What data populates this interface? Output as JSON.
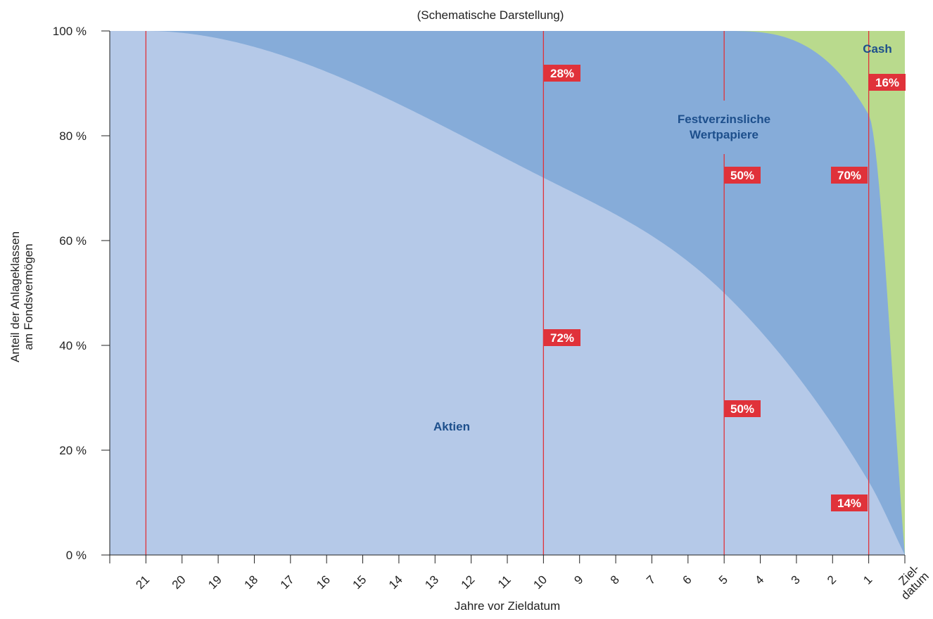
{
  "chart_data": {
    "type": "area",
    "subtitle": "(Schematische Darstellung)",
    "xlabel": "Jahre vor Zieldatum",
    "ylabel_lines": [
      "Anteil der Anlageklassen",
      "am Fondsvermögen"
    ],
    "x_ticks": [
      "21",
      "20",
      "19",
      "18",
      "17",
      "16",
      "15",
      "14",
      "13",
      "12",
      "11",
      "10",
      "9",
      "8",
      "7",
      "6",
      "5",
      "4",
      "3",
      "2",
      "1",
      "Ziel-|datum"
    ],
    "x_range_years_before": [
      22,
      0
    ],
    "y_ticks": [
      "0 %",
      "20 %",
      "40 %",
      "60 %",
      "80 %",
      "100 %"
    ],
    "ylim": [
      0,
      100
    ],
    "series": [
      {
        "name": "Aktien",
        "x_years_before": [
          22,
          21,
          10,
          5,
          1,
          0
        ],
        "values": [
          100,
          100,
          72,
          50,
          14,
          0
        ]
      },
      {
        "name": "Festverzinsliche Wertpapiere",
        "x_years_before": [
          22,
          21,
          10,
          5,
          1,
          0
        ],
        "values": [
          0,
          0,
          28,
          50,
          70,
          0
        ]
      },
      {
        "name": "Cash",
        "x_years_before": [
          22,
          21,
          10,
          5,
          1,
          0
        ],
        "values": [
          0,
          0,
          0,
          0,
          16,
          100
        ]
      }
    ],
    "reference_lines_years_before": [
      21,
      10,
      5,
      1
    ],
    "annotations": [
      {
        "year": 10,
        "value": 28,
        "text": "28%"
      },
      {
        "year": 10,
        "value": 72,
        "text": "72%"
      },
      {
        "year": 5,
        "value": 50,
        "text": "50%"
      },
      {
        "year": 5,
        "value": 50,
        "text": "50%"
      },
      {
        "year": 1,
        "value": 16,
        "text": "16%"
      },
      {
        "year": 1,
        "value": 70,
        "text": "70%"
      },
      {
        "year": 1,
        "value": 14,
        "text": "14%"
      }
    ],
    "area_labels": [
      {
        "lines": [
          "Aktien"
        ]
      },
      {
        "lines": [
          "Festverzinsliche",
          "Wertpapiere"
        ]
      },
      {
        "lines": [
          "Cash"
        ]
      }
    ],
    "colors": {
      "equity": "#b5c9e8",
      "bonds": "#86acd9",
      "cash": "#b9da8d",
      "reference_line": "#e0323a",
      "badge": "#e0323a",
      "label_text": "#1d4f8c"
    }
  }
}
